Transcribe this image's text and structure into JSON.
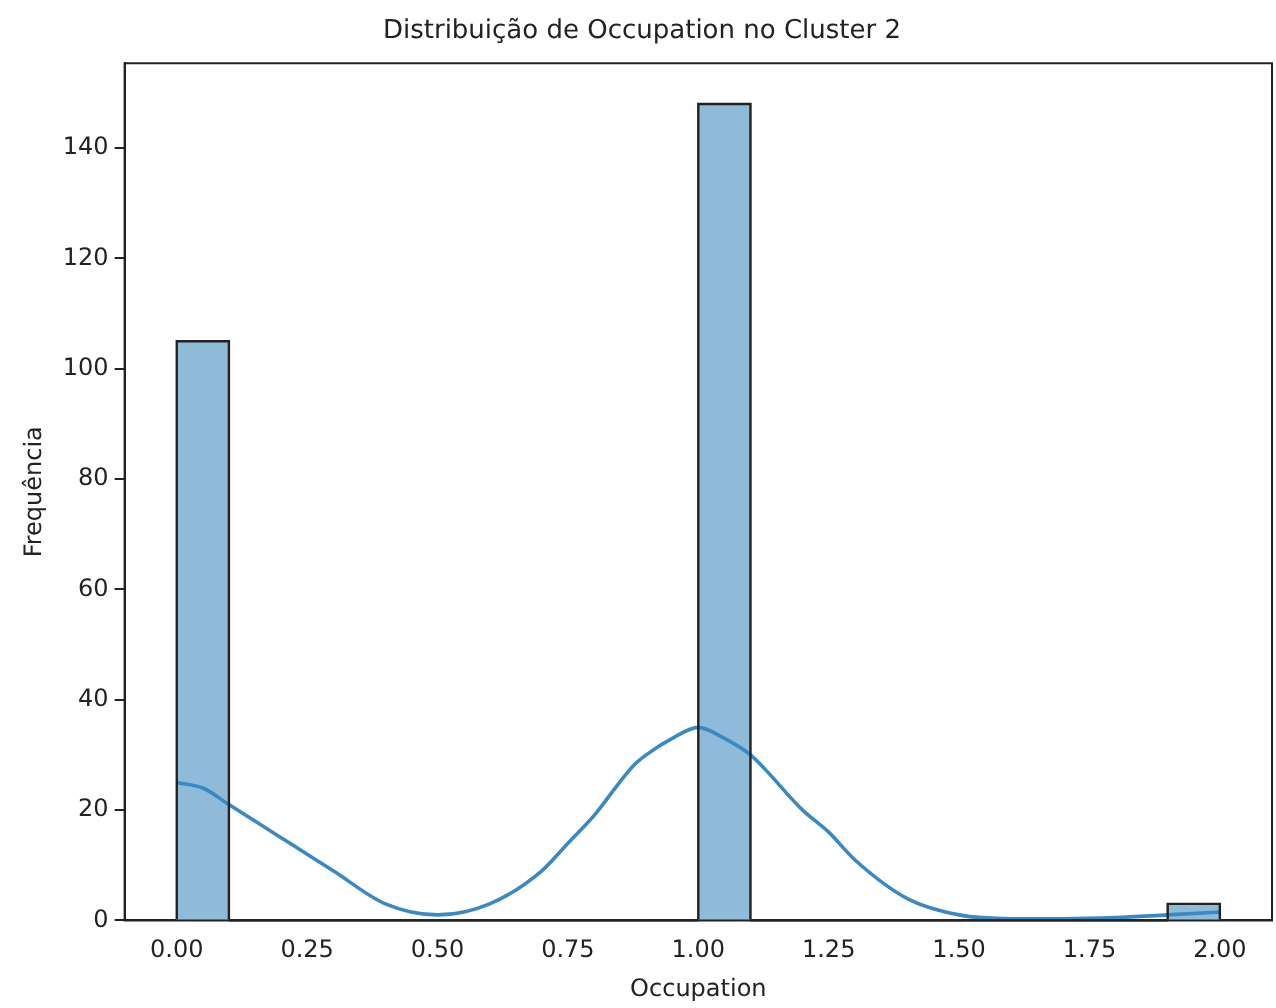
{
  "chart_data": {
    "type": "histogram",
    "title": "Distribuição de Occupation no Cluster 2",
    "xlabel": "Occupation",
    "ylabel": "Frequência",
    "xlim": [
      -0.1,
      2.1
    ],
    "xticks": [
      {
        "value": 0,
        "label": "0.00"
      },
      {
        "value": 0.25,
        "label": "0.25"
      },
      {
        "value": 0.5,
        "label": "0.50"
      },
      {
        "value": 0.75,
        "label": "0.75"
      },
      {
        "value": 1,
        "label": "1.00"
      },
      {
        "value": 1.25,
        "label": "1.25"
      },
      {
        "value": 1.5,
        "label": "1.50"
      },
      {
        "value": 1.75,
        "label": "1.75"
      },
      {
        "value": 2,
        "label": "2.00"
      }
    ],
    "ylim": [
      0,
      155.4
    ],
    "yticks": [
      0,
      20,
      40,
      60,
      80,
      100,
      120,
      140
    ],
    "grid": false,
    "legend": false,
    "marker": "none",
    "series": [
      {
        "color": "#8fbbd9",
        "bins": [
          0,
          0.1,
          0.2,
          0.3,
          0.4,
          0.5,
          0.6,
          0.7,
          0.8,
          0.9,
          1,
          1.1,
          1.2,
          1.3,
          1.4,
          1.5,
          1.6,
          1.7,
          1.8,
          1.9,
          2
        ],
        "values": [
          105,
          0,
          0,
          0,
          0,
          0,
          0,
          0,
          0,
          0,
          148,
          0,
          0,
          0,
          0,
          0,
          0,
          0,
          0,
          3
        ]
      },
      {
        "type": "line",
        "color": "#3a88c4",
        "x": [
          0,
          0.05,
          0.1,
          0.2,
          0.25,
          0.3,
          0.4,
          0.5,
          0.6,
          0.7,
          0.75,
          0.8,
          0.875,
          0.9,
          0.95,
          1,
          1.05,
          1.1,
          1.2,
          1.25,
          1.3,
          1.4,
          1.5,
          1.6,
          1.7,
          1.8,
          1.9,
          2
        ],
        "values": [
          25,
          24,
          21,
          15,
          12,
          9,
          3,
          1,
          3,
          9,
          14,
          19,
          28,
          30,
          33,
          35,
          33,
          30,
          20,
          16,
          11,
          4,
          1,
          0.3,
          0.3,
          0.5,
          1,
          1.5
        ]
      }
    ]
  }
}
